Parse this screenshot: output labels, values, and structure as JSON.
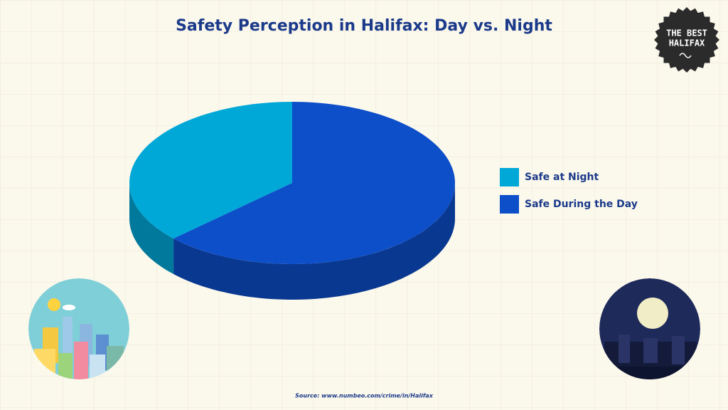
{
  "chart_data": {
    "type": "pie",
    "title": "Safety Perception in Halifax: Day vs. Night",
    "categories": [
      "Safe at Night",
      "Safe During the Day"
    ],
    "values": [
      37,
      63
    ],
    "colors": [
      "#00a8d8",
      "#0d4ec9"
    ],
    "legend": "right"
  },
  "source": "Source: www.numbeo.com/crime/in/Halifax",
  "logo": {
    "line1": "THE BEST",
    "line2": "HALIFAX"
  }
}
